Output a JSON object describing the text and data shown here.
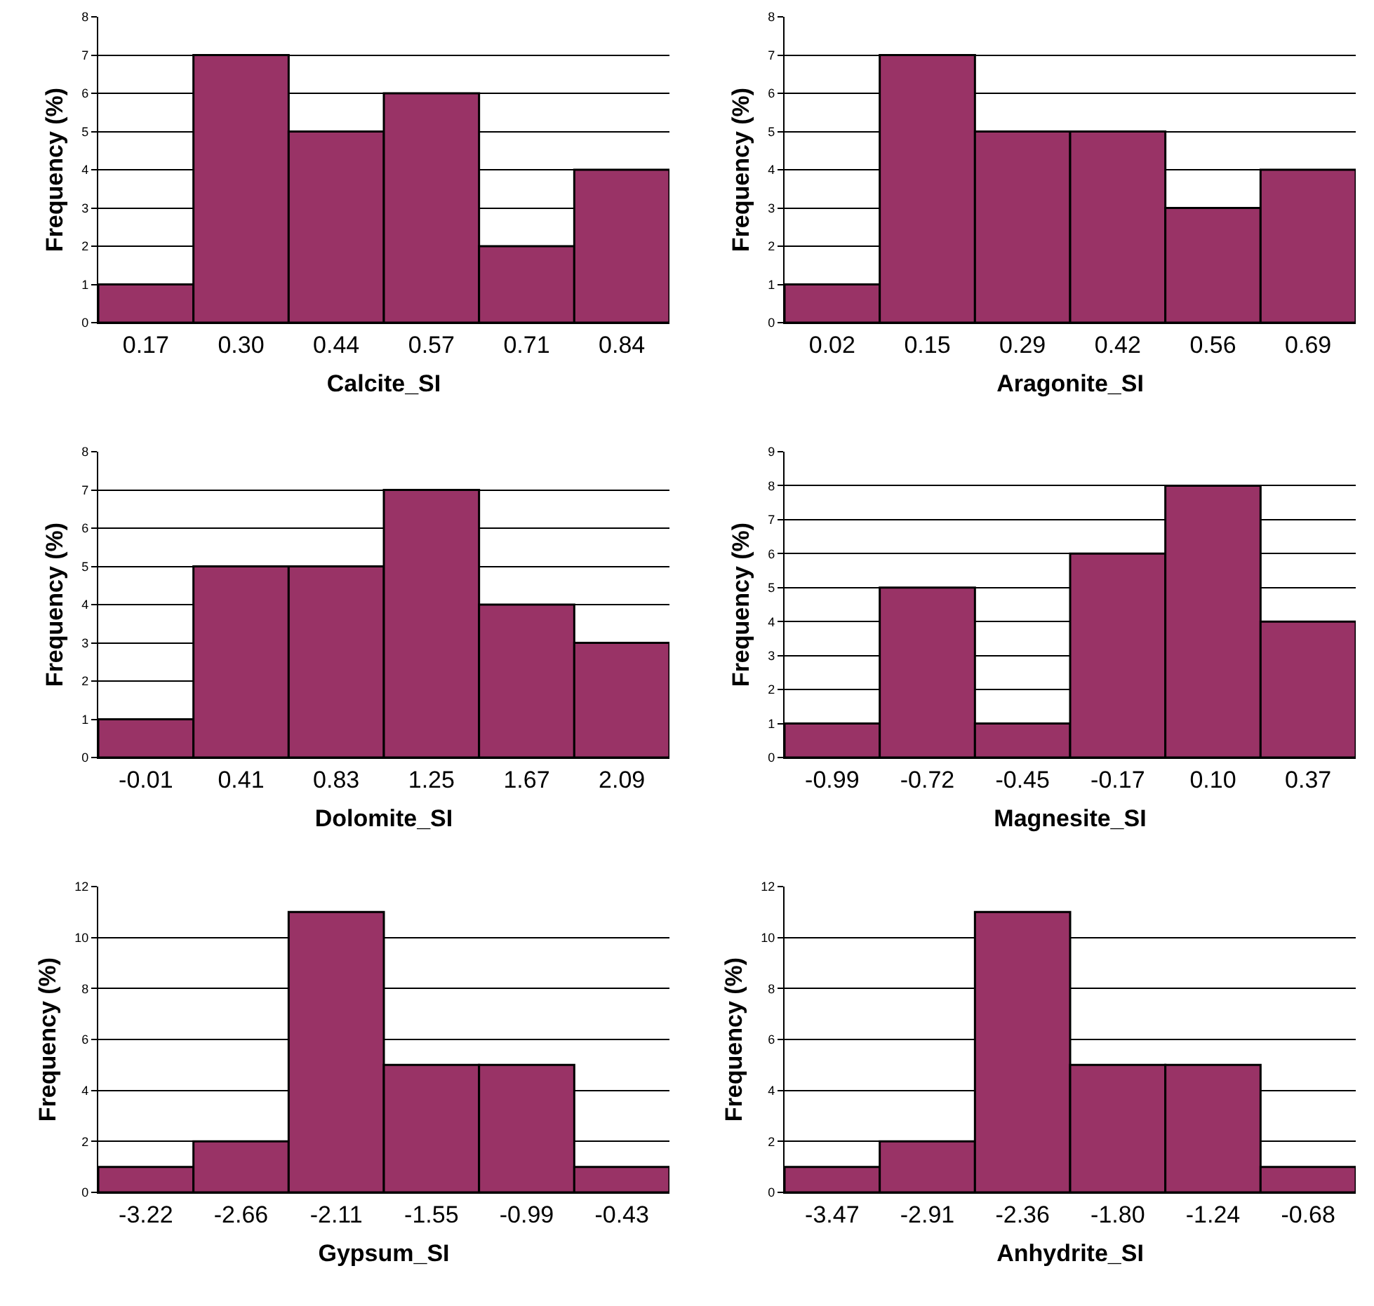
{
  "chart_data": [
    {
      "type": "bar",
      "xlabel": "Calcite_SI",
      "ylabel": "Frequency (%)",
      "categories": [
        "0.17",
        "0.30",
        "0.44",
        "0.57",
        "0.71",
        "0.84"
      ],
      "values": [
        1,
        7,
        5,
        6,
        2,
        4
      ],
      "color": "#993366",
      "ylim": [
        0,
        8
      ],
      "yticks": [
        0,
        1,
        2,
        3,
        4,
        5,
        6,
        7,
        8
      ],
      "grid": "y"
    },
    {
      "type": "bar",
      "xlabel": "Aragonite_SI",
      "ylabel": "Frequency (%)",
      "categories": [
        "0.02",
        "0.15",
        "0.29",
        "0.42",
        "0.56",
        "0.69"
      ],
      "values": [
        1,
        7,
        5,
        5,
        3,
        4
      ],
      "color": "#993366",
      "ylim": [
        0,
        8
      ],
      "yticks": [
        0,
        1,
        2,
        3,
        4,
        5,
        6,
        7,
        8
      ],
      "grid": "y"
    },
    {
      "type": "bar",
      "xlabel": "Dolomite_SI",
      "ylabel": "Frequency (%)",
      "categories": [
        "-0.01",
        "0.41",
        "0.83",
        "1.25",
        "1.67",
        "2.09"
      ],
      "values": [
        1,
        5,
        5,
        7,
        4,
        3
      ],
      "color": "#993366",
      "ylim": [
        0,
        8
      ],
      "yticks": [
        0,
        1,
        2,
        3,
        4,
        5,
        6,
        7,
        8
      ],
      "grid": "y"
    },
    {
      "type": "bar",
      "xlabel": "Magnesite_SI",
      "ylabel": "Frequency (%)",
      "categories": [
        "-0.99",
        "-0.72",
        "-0.45",
        "-0.17",
        "0.10",
        "0.37"
      ],
      "values": [
        1,
        5,
        1,
        6,
        8,
        4
      ],
      "color": "#993366",
      "ylim": [
        0,
        9
      ],
      "yticks": [
        0,
        1,
        2,
        3,
        4,
        5,
        6,
        7,
        8,
        9
      ],
      "grid": "y"
    },
    {
      "type": "bar",
      "xlabel": "Gypsum_SI",
      "ylabel": "Frequency (%)",
      "categories": [
        "-3.22",
        "-2.66",
        "-2.11",
        "-1.55",
        "-0.99",
        "-0.43"
      ],
      "values": [
        1,
        2,
        11,
        5,
        5,
        1
      ],
      "color": "#993366",
      "ylim": [
        0,
        12
      ],
      "yticks": [
        0,
        2,
        4,
        6,
        8,
        10,
        12
      ],
      "grid": "y"
    },
    {
      "type": "bar",
      "xlabel": "Anhydrite_SI",
      "ylabel": "Frequency (%)",
      "categories": [
        "-3.47",
        "-2.91",
        "-2.36",
        "-1.80",
        "-1.24",
        "-0.68"
      ],
      "values": [
        1,
        2,
        11,
        5,
        5,
        1
      ],
      "color": "#993366",
      "ylim": [
        0,
        12
      ],
      "yticks": [
        0,
        2,
        4,
        6,
        8,
        10,
        12
      ],
      "grid": "y"
    }
  ]
}
